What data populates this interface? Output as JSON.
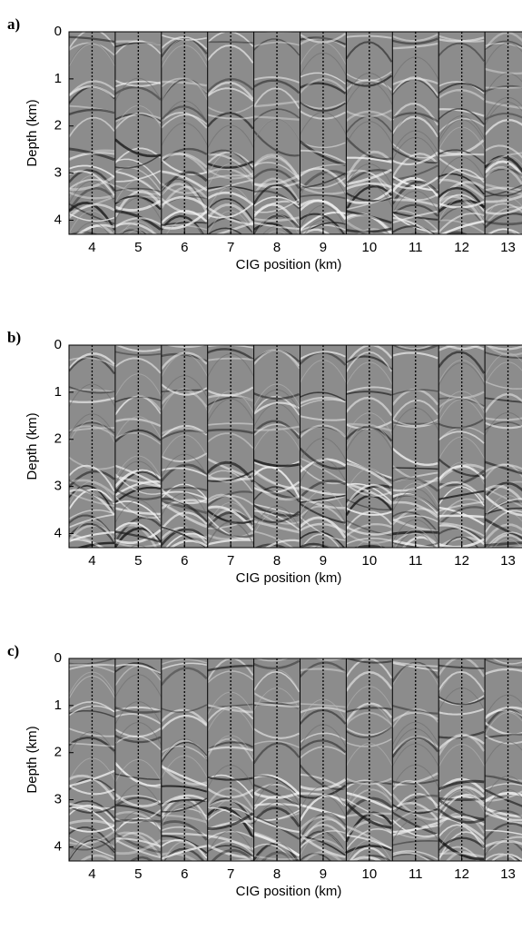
{
  "chart_data": [
    {
      "type": "seismic",
      "panel_label": "a)",
      "xlabel": "CIG position (km)",
      "ylabel": "Depth (km)",
      "xlim": [
        3.5,
        13.5
      ],
      "ylim": [
        0,
        4.3
      ],
      "xticks": [
        4,
        5,
        6,
        7,
        8,
        9,
        10,
        11,
        12,
        13
      ],
      "yticks": [
        0,
        1,
        2,
        3,
        4
      ]
    },
    {
      "type": "seismic",
      "panel_label": "b)",
      "xlabel": "CIG position (km)",
      "ylabel": "Depth (km)",
      "xlim": [
        3.5,
        13.5
      ],
      "ylim": [
        0,
        4.3
      ],
      "xticks": [
        4,
        5,
        6,
        7,
        8,
        9,
        10,
        11,
        12,
        13
      ],
      "yticks": [
        0,
        1,
        2,
        3,
        4
      ]
    },
    {
      "type": "seismic",
      "panel_label": "c)",
      "xlabel": "CIG position (km)",
      "ylabel": "Depth (km)",
      "xlim": [
        3.5,
        13.5
      ],
      "ylim": [
        0,
        4.3
      ],
      "xticks": [
        4,
        5,
        6,
        7,
        8,
        9,
        10,
        11,
        12,
        13
      ],
      "yticks": [
        0,
        1,
        2,
        3,
        4
      ]
    }
  ]
}
